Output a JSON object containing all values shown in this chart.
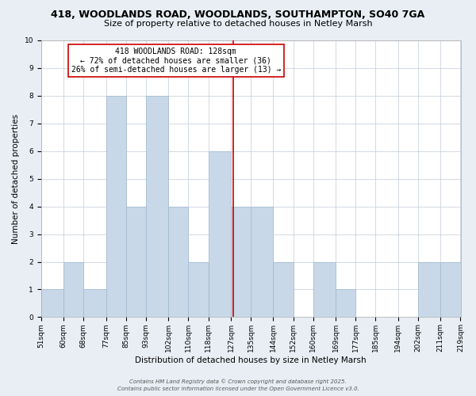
{
  "title_line1": "418, WOODLANDS ROAD, WOODLANDS, SOUTHAMPTON, SO40 7GA",
  "title_line2": "Size of property relative to detached houses in Netley Marsh",
  "xlabel": "Distribution of detached houses by size in Netley Marsh",
  "ylabel": "Number of detached properties",
  "footer_line1": "Contains HM Land Registry data © Crown copyright and database right 2025.",
  "footer_line2": "Contains public sector information licensed under the Open Government Licence v3.0.",
  "annotation_line1": "418 WOODLANDS ROAD: 128sqm",
  "annotation_line2": "← 72% of detached houses are smaller (36)",
  "annotation_line3": "26% of semi-detached houses are larger (13) →",
  "bins": [
    51,
    60,
    68,
    77,
    85,
    93,
    102,
    110,
    118,
    127,
    135,
    144,
    152,
    160,
    169,
    177,
    185,
    194,
    202,
    211,
    219
  ],
  "counts": [
    1,
    2,
    1,
    8,
    4,
    8,
    4,
    2,
    6,
    4,
    4,
    2,
    0,
    2,
    1,
    0,
    0,
    0,
    2,
    2
  ],
  "bar_color": "#c8d8e8",
  "bar_edge_color": "#a0b8d0",
  "vline_x": 128,
  "vline_color": "#cc0000",
  "annotation_box_edge": "#cc0000",
  "annotation_box_fill": "white",
  "ylim": [
    0,
    10
  ],
  "yticks": [
    0,
    1,
    2,
    3,
    4,
    5,
    6,
    7,
    8,
    9,
    10
  ],
  "bg_color": "#e8eef4",
  "plot_bg_color": "#ffffff",
  "grid_color": "#c0ccd8",
  "title_fontsize": 9,
  "subtitle_fontsize": 8,
  "xlabel_fontsize": 7.5,
  "ylabel_fontsize": 7.5,
  "tick_fontsize": 6.5,
  "annotation_fontsize": 7,
  "footer_fontsize": 5
}
